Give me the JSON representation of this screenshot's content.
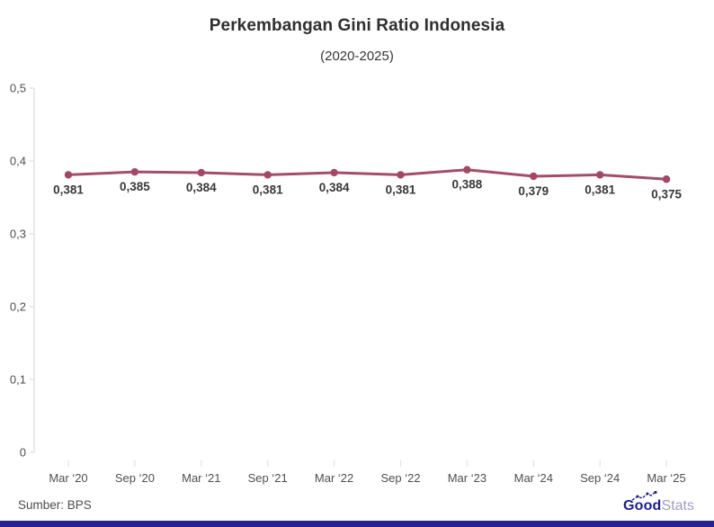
{
  "header": {
    "title": "Perkembangan Gini Ratio Indonesia",
    "subtitle": "(2020-2025)"
  },
  "footer": {
    "source": "Sumber: BPS",
    "logo_bold": "Good",
    "logo_light": "Stats"
  },
  "colors": {
    "line": "#a34e68",
    "point": "#a34864",
    "axis": "#e2e2e2",
    "x_tick": "#ece3e3",
    "axis_label": "#4f4f4f",
    "data_label": "#383838",
    "brand_navy": "#1d1d96",
    "brand_light": "#9d9dc7",
    "bottom_bar": "#24238f"
  },
  "chart_data": {
    "type": "line",
    "title": "Perkembangan Gini Ratio Indonesia",
    "subtitle": "(2020-2025)",
    "xlabel": "",
    "ylabel": "",
    "legend": "none",
    "grid": "y-axis line with ticks only",
    "ylim": [
      0,
      0.5
    ],
    "categories": [
      "Mar ‘20",
      "Sep ‘20",
      "Mar ‘21",
      "Sep ‘21",
      "Mar ‘22",
      "Sep ‘22",
      "Mar ‘23",
      "Mar ‘24",
      "Sep ‘24",
      "Mar ‘25"
    ],
    "values": [
      0.381,
      0.385,
      0.384,
      0.381,
      0.384,
      0.381,
      0.388,
      0.379,
      0.381,
      0.375
    ],
    "point_labels": [
      "0,381",
      "0,385",
      "0,384",
      "0,381",
      "0,384",
      "0,381",
      "0,388",
      "0,379",
      "0,381",
      "0,375"
    ],
    "yticks": {
      "values": [
        0.5,
        0.4,
        0.3,
        0.2,
        0.1,
        0
      ],
      "labels": [
        "0,5",
        "0,4",
        "0,3",
        "0,2",
        "0,1",
        "0"
      ]
    },
    "source": "Sumber: BPS"
  }
}
